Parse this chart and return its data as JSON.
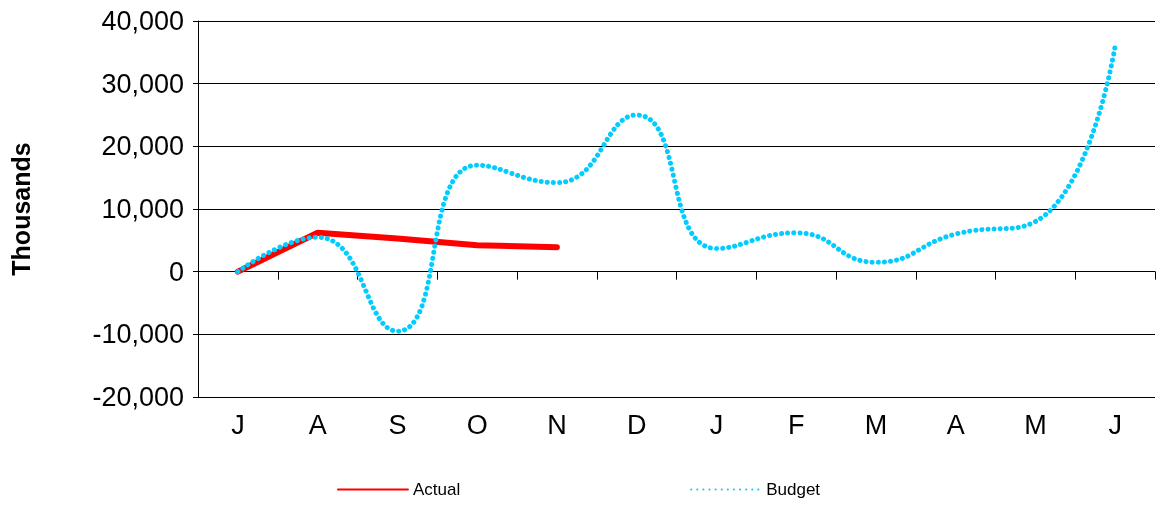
{
  "chart_data": {
    "type": "line",
    "ylabel": "Thousands",
    "categories": [
      "J",
      "A",
      "S",
      "O",
      "N",
      "D",
      "J",
      "F",
      "M",
      "A",
      "M",
      "J"
    ],
    "series": [
      {
        "name": "Actual",
        "color": "#ff0000",
        "line_style": "solid",
        "values": [
          0,
          6200,
          5300,
          4200,
          3900,
          null,
          null,
          null,
          null,
          null,
          null,
          null
        ]
      },
      {
        "name": "Budget",
        "color": "#00ccff",
        "line_style": "dotted",
        "values": [
          0,
          5500,
          -9500,
          17000,
          14200,
          25000,
          3700,
          6200,
          1500,
          6000,
          8000,
          36000
        ]
      }
    ],
    "ylim": [
      -20000,
      40000
    ],
    "yticks": [
      {
        "value": -20000,
        "label": "-20,000"
      },
      {
        "value": -10000,
        "label": "-10,000"
      },
      0,
      {
        "value": 10000,
        "label": "10,000"
      },
      {
        "value": 20000,
        "label": "20,000"
      },
      {
        "value": 30000,
        "label": "30,000"
      },
      {
        "value": 40000,
        "label": "40,000"
      }
    ],
    "grid": "y",
    "legend": "bottom",
    "marker": "none"
  }
}
